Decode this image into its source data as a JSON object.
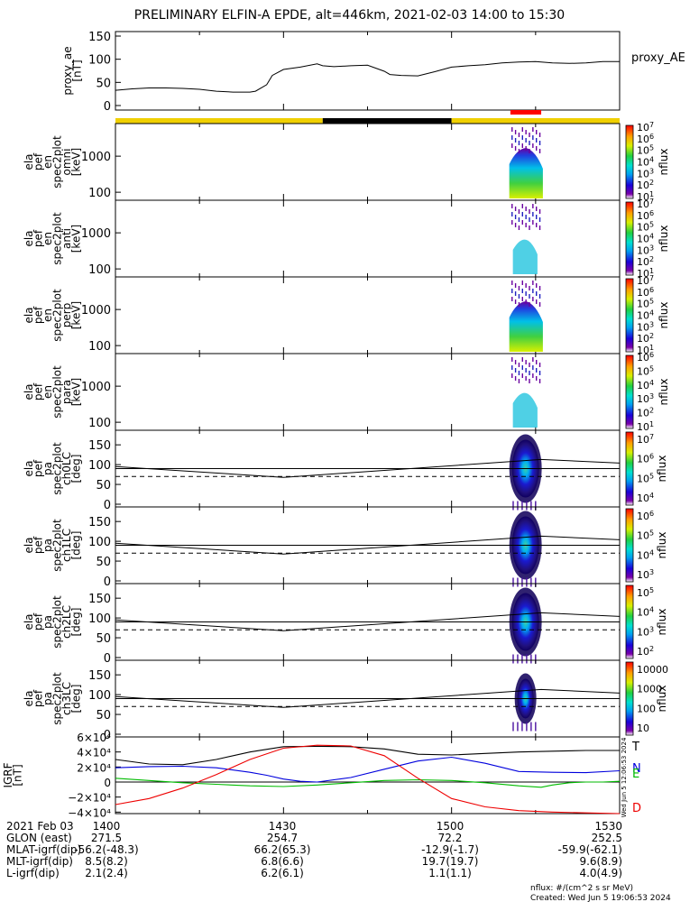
{
  "title": "PRELIMINARY ELFIN-A EPDE, alt=446km, 2021-02-03 14:00 to 15:30",
  "chart_data": {
    "type": "line",
    "x_ticks": [
      "1400",
      "1430",
      "1500",
      "1530"
    ],
    "ae_panel": {
      "ylabel": "proxy_ae\n[nT]",
      "legend": "proxy_AE",
      "yticks": [
        "150",
        "100",
        "50",
        "0"
      ],
      "ylim": [
        0,
        150
      ],
      "series": [
        {
          "name": "proxy_AE",
          "x": [
            0,
            3,
            6,
            9,
            12,
            15,
            18,
            21,
            24,
            25,
            27,
            28,
            30,
            33,
            36,
            37,
            39,
            42,
            45,
            48,
            49,
            51,
            54,
            57,
            60,
            63,
            66,
            69,
            72,
            75,
            78,
            81,
            84,
            87,
            90
          ],
          "y": [
            33,
            36,
            38,
            38,
            37,
            35,
            31,
            29,
            29,
            31,
            45,
            65,
            78,
            83,
            90,
            86,
            84,
            86,
            87,
            74,
            67,
            65,
            64,
            73,
            83,
            86,
            88,
            92,
            94,
            95,
            92,
            91,
            92,
            95,
            95
          ]
        }
      ]
    },
    "status_bar": [
      {
        "from": 0,
        "to": 37,
        "color": "#f0d000"
      },
      {
        "from": 37,
        "to": 60,
        "color": "#000000"
      },
      {
        "from": 60,
        "to": 90,
        "color": "#f0d000"
      }
    ],
    "data_bar": {
      "from": 70.5,
      "to": 76,
      "color": "#ff0000"
    },
    "energy_panels": [
      {
        "ylabel": "ela\npef\nen\nspec2plot\nomni\n[keV]",
        "yticks": [
          "1000",
          "100"
        ],
        "zlabel": "nflux",
        "ztick_exps": [
          "1",
          "2",
          "3",
          "4",
          "5",
          "6",
          "7"
        ],
        "intensity": 1.0
      },
      {
        "ylabel": "ela\npef\nen\nspec2plot\nanti\n[keV]",
        "yticks": [
          "1000",
          "100"
        ],
        "zlabel": "nflux",
        "ztick_exps": [
          "1",
          "2",
          "3",
          "4",
          "5",
          "6",
          "7"
        ],
        "intensity": 0.5
      },
      {
        "ylabel": "ela\npef\nen\nspec2plot\nperp\n[keV]",
        "yticks": [
          "1000",
          "100"
        ],
        "zlabel": "nflux",
        "ztick_exps": [
          "1",
          "2",
          "3",
          "4",
          "5",
          "6",
          "7"
        ],
        "intensity": 1.0
      },
      {
        "ylabel": "ela\npef\nen\nspec2plot\npara\n[keV]",
        "yticks": [
          "1000",
          "100"
        ],
        "zlabel": "nflux",
        "ztick_exps": [
          "1",
          "2",
          "3",
          "4",
          "5",
          "6"
        ],
        "intensity": 0.45
      }
    ],
    "pitch_panels": [
      {
        "ylabel": "ela\npef\npa\nspec2plot\nch0LC\n[deg]",
        "yticks": [
          "150",
          "100",
          "50",
          "0"
        ],
        "zlabel": "nflux",
        "zticks": [
          {
            "b": "10",
            "e": "7"
          },
          {
            "b": "10",
            "e": "6"
          },
          {
            "b": "10",
            "e": "5"
          },
          {
            "b": "10",
            "e": "4"
          }
        ]
      },
      {
        "ylabel": "ela\npef\npa\nspec2plot\nch1LC\n[deg]",
        "yticks": [
          "150",
          "100",
          "50",
          "0"
        ],
        "zlabel": "nflux",
        "zticks": [
          {
            "b": "10",
            "e": "6"
          },
          {
            "b": "10",
            "e": "5"
          },
          {
            "b": "10",
            "e": "4"
          },
          {
            "b": "10",
            "e": "3"
          }
        ]
      },
      {
        "ylabel": "ela\npef\npa\nspec2plot\nch2LC\n[deg]",
        "yticks": [
          "150",
          "100",
          "50",
          "0"
        ],
        "zlabel": "nflux",
        "zticks": [
          {
            "b": "10",
            "e": "5"
          },
          {
            "b": "10",
            "e": "4"
          },
          {
            "b": "10",
            "e": "3"
          },
          {
            "b": "10",
            "e": "2"
          }
        ]
      },
      {
        "ylabel": "ela\npef\npa\nspec2plot\nch3LC\n[deg]",
        "yticks": [
          "150",
          "100",
          "50",
          "0"
        ],
        "zlabel": "nflux",
        "zticks": [
          {
            "b": "10000",
            "e": ""
          },
          {
            "b": "1000",
            "e": ""
          },
          {
            "b": "100",
            "e": ""
          },
          {
            "b": "10",
            "e": ""
          }
        ]
      }
    ],
    "pitch_lines": {
      "solid": {
        "x": [
          0,
          30,
          76,
          90
        ],
        "y": [
          95,
          68,
          113,
          104
        ]
      },
      "horizontal_deg": 90,
      "dashed_deg": 70
    },
    "igrf_panel": {
      "ylabel": "IGRF\n[nT]",
      "yticks": [
        "6×10⁴",
        "4×10⁴",
        "2×10⁴",
        "0",
        "−2×10⁴",
        "−4×10⁴"
      ],
      "ylim": [
        -42000,
        60000
      ],
      "labels": [
        {
          "text": "T",
          "color": "#000000"
        },
        {
          "text": "N",
          "color": "#0000dd"
        },
        {
          "text": "E",
          "color": "#00bb00"
        },
        {
          "text": "D",
          "color": "#ee0000"
        }
      ],
      "stamp": "Wed Jun  5 12:06:53 2024",
      "series": [
        {
          "name": "T",
          "color": "#000000",
          "x": [
            0,
            6,
            12,
            18,
            24,
            30,
            36,
            42,
            48,
            54,
            60,
            66,
            72,
            78,
            84,
            90
          ],
          "y": [
            30000,
            24000,
            23000,
            30000,
            40000,
            47000,
            47500,
            47000,
            44000,
            37000,
            36000,
            38000,
            40000,
            41000,
            42000,
            42000
          ]
        },
        {
          "name": "N",
          "color": "#0000dd",
          "x": [
            0,
            6,
            12,
            18,
            24,
            27,
            30,
            33,
            36,
            42,
            48,
            54,
            60,
            66,
            72,
            78,
            84,
            90
          ],
          "y": [
            19000,
            20500,
            21000,
            19000,
            13000,
            9000,
            4000,
            1000,
            0,
            6000,
            17000,
            28000,
            33000,
            25000,
            14000,
            13000,
            12500,
            15000
          ]
        },
        {
          "name": "E",
          "color": "#00bb00",
          "x": [
            0,
            6,
            12,
            18,
            24,
            30,
            36,
            42,
            48,
            54,
            60,
            66,
            72,
            76,
            78,
            81,
            84,
            87,
            90
          ],
          "y": [
            5000,
            2000,
            -1000,
            -3000,
            -5000,
            -6000,
            -4000,
            -1000,
            2000,
            3000,
            2000,
            -1000,
            -5000,
            -7000,
            -4000,
            -1000,
            0,
            0,
            1000
          ]
        },
        {
          "name": "D",
          "color": "#ee0000",
          "x": [
            0,
            6,
            12,
            18,
            24,
            30,
            36,
            42,
            48,
            54,
            60,
            66,
            72,
            78,
            84,
            90
          ],
          "y": [
            -30000,
            -22000,
            -8000,
            10000,
            30000,
            45000,
            49000,
            48000,
            35000,
            5000,
            -22000,
            -33000,
            -38000,
            -40000,
            -41000,
            -42000
          ]
        }
      ]
    }
  },
  "ephemeris": [
    [
      "2021 Feb 03",
      "1400",
      "1430",
      "1500",
      "1530"
    ],
    [
      "GLON (east)",
      "271.5",
      "254.7",
      "72.2",
      "252.5"
    ],
    [
      "MLAT-igrf(dip)",
      "-56.2(-48.3)",
      "66.2(65.3)",
      "-12.9(-1.7)",
      "-59.9(-62.1)"
    ],
    [
      "MLT-igrf(dip)",
      "8.5(8.2)",
      "6.8(6.6)",
      "19.7(19.7)",
      "9.6(8.9)"
    ],
    [
      "L-igrf(dip)",
      "2.1(2.4)",
      "6.2(6.1)",
      "1.1(1.1)",
      "4.0(4.9)"
    ]
  ],
  "footer": {
    "line1": "nflux: #/(cm^2 s sr MeV)",
    "line2": "Created: Wed Jun  5 19:06:53 2024"
  }
}
